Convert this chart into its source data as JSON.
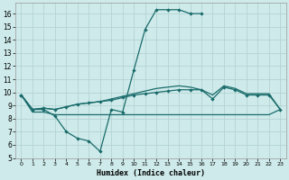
{
  "xlabel": "Humidex (Indice chaleur)",
  "x": [
    0,
    1,
    2,
    3,
    4,
    5,
    6,
    7,
    8,
    9,
    10,
    11,
    12,
    13,
    14,
    15,
    16,
    17,
    18,
    19,
    20,
    21,
    22,
    23
  ],
  "line1_x": [
    0,
    1,
    2,
    3,
    4,
    5,
    6,
    7,
    8,
    9,
    10,
    11,
    12,
    13,
    14,
    15,
    16
  ],
  "line1_y": [
    9.8,
    8.7,
    8.7,
    8.2,
    7.0,
    6.5,
    6.3,
    5.5,
    8.7,
    8.5,
    11.7,
    14.8,
    16.3,
    16.3,
    16.3,
    16.0,
    16.0
  ],
  "line2_x": [
    0,
    1,
    2,
    3,
    4,
    5,
    6,
    7,
    8,
    9,
    10,
    11,
    12,
    13,
    14,
    15,
    16,
    17,
    18,
    19,
    20,
    21,
    22,
    23
  ],
  "line2_y": [
    9.8,
    8.5,
    8.5,
    8.3,
    8.3,
    8.3,
    8.3,
    8.3,
    8.3,
    8.3,
    8.3,
    8.3,
    8.3,
    8.3,
    8.3,
    8.3,
    8.3,
    8.3,
    8.3,
    8.3,
    8.3,
    8.3,
    8.3,
    8.7
  ],
  "line3_x": [
    0,
    1,
    2,
    3,
    4,
    5,
    6,
    7,
    8,
    9,
    10,
    11,
    12,
    13,
    14,
    15,
    16,
    17,
    18,
    19,
    20,
    21,
    22,
    23
  ],
  "line3_y": [
    9.8,
    8.7,
    8.8,
    8.7,
    8.9,
    9.1,
    9.2,
    9.3,
    9.4,
    9.6,
    9.8,
    9.9,
    10.0,
    10.1,
    10.2,
    10.2,
    10.2,
    9.5,
    10.4,
    10.2,
    9.8,
    9.8,
    9.8,
    8.7
  ],
  "line4_x": [
    0,
    1,
    2,
    3,
    4,
    5,
    6,
    7,
    8,
    9,
    10,
    11,
    12,
    13,
    14,
    15,
    16,
    17,
    18,
    19,
    20,
    21,
    22,
    23
  ],
  "line4_y": [
    9.8,
    8.7,
    8.8,
    8.7,
    8.9,
    9.1,
    9.2,
    9.3,
    9.5,
    9.7,
    9.9,
    10.1,
    10.3,
    10.4,
    10.5,
    10.4,
    10.2,
    9.8,
    10.5,
    10.3,
    9.9,
    9.9,
    9.9,
    8.7
  ],
  "line_color": "#1a6b6b",
  "bg_color": "#ceeaea",
  "grid_color": "#b0d0d0",
  "xlim": [
    -0.5,
    23.5
  ],
  "ylim": [
    5,
    16.8
  ],
  "yticks": [
    5,
    6,
    7,
    8,
    9,
    10,
    11,
    12,
    13,
    14,
    15,
    16
  ],
  "xticks": [
    0,
    1,
    2,
    3,
    4,
    5,
    6,
    7,
    8,
    9,
    10,
    11,
    12,
    13,
    14,
    15,
    16,
    17,
    18,
    19,
    20,
    21,
    22,
    23
  ]
}
